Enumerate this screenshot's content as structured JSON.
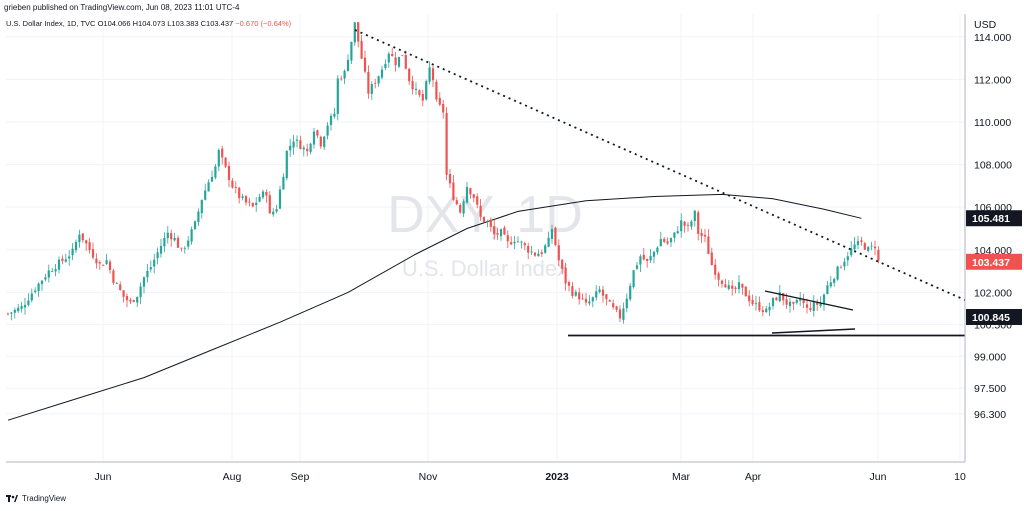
{
  "header": {
    "publisher": "grieben published on TradingView.com, Jun 08, 2023 11:01 UTC-4"
  },
  "symbol": {
    "name": "U.S. Dollar Index, 1D, TVC",
    "open": "O104.066",
    "high": "H104.073",
    "low": "L103.383",
    "close": "C103.437",
    "change": "−0.670 (−0.64%)"
  },
  "watermark": {
    "ticker": "DXY, 1D",
    "name": "U.S. Dollar Index"
  },
  "footer": {
    "brand": "TradingView"
  },
  "colors": {
    "up": "#26a69a",
    "down": "#ef5350",
    "line": "#131722",
    "grid": "#f0f3fa",
    "badge_dark": "#131722",
    "badge_red": "#ef5350"
  },
  "chart_data": {
    "type": "candlestick",
    "title": "U.S. Dollar Index, 1D, TVC",
    "currency": "USD",
    "grid": true,
    "y_ticks": [
      96.3,
      97.5,
      99.0,
      100.5,
      102.0,
      104.0,
      106.0,
      108.0,
      110.0,
      112.0,
      114.0
    ],
    "y_tick_labels": [
      "96.300",
      "97.500",
      "99.000",
      "100.500",
      "102.000",
      "104.000",
      "106.000",
      "108.000",
      "110.000",
      "112.000",
      "114.000"
    ],
    "x_labels": [
      "Jun",
      "Aug",
      "Sep",
      "Nov",
      "2023",
      "Mar",
      "Apr",
      "Jun",
      "10"
    ],
    "price_badges": [
      {
        "label": "105.481",
        "value": 105.481,
        "style": "dark"
      },
      {
        "label": "103.437",
        "value": 103.437,
        "style": "red"
      },
      {
        "label": "100.845",
        "value": 100.845,
        "style": "dark"
      }
    ],
    "price_path": [
      [
        0,
        101.0
      ],
      [
        4,
        101.3
      ],
      [
        8,
        102.2
      ],
      [
        12,
        103.0
      ],
      [
        16,
        103.5
      ],
      [
        19,
        103.9
      ],
      [
        21,
        104.8
      ],
      [
        24,
        104.0
      ],
      [
        27,
        103.3
      ],
      [
        29,
        103.5
      ],
      [
        31,
        102.6
      ],
      [
        34,
        101.8
      ],
      [
        36,
        101.5
      ],
      [
        38,
        101.9
      ],
      [
        40,
        102.7
      ],
      [
        42,
        103.2
      ],
      [
        45,
        104.2
      ],
      [
        47,
        104.8
      ],
      [
        49,
        104.5
      ],
      [
        51,
        103.9
      ],
      [
        53,
        104.5
      ],
      [
        55,
        105.2
      ],
      [
        57,
        106.4
      ],
      [
        59,
        107.2
      ],
      [
        61,
        107.9
      ],
      [
        62,
        108.6
      ],
      [
        64,
        107.8
      ],
      [
        66,
        107.0
      ],
      [
        68,
        106.5
      ],
      [
        70,
        106.2
      ],
      [
        72,
        106.0
      ],
      [
        74,
        106.5
      ],
      [
        76,
        106.7
      ],
      [
        77,
        105.6
      ],
      [
        79,
        106.0
      ],
      [
        81,
        107.6
      ],
      [
        82,
        108.6
      ],
      [
        84,
        109.2
      ],
      [
        86,
        108.9
      ],
      [
        88,
        108.6
      ],
      [
        90,
        109.7
      ],
      [
        92,
        109.0
      ],
      [
        94,
        109.9
      ],
      [
        96,
        110.4
      ],
      [
        97,
        112.0
      ],
      [
        99,
        112.3
      ],
      [
        101,
        113.8
      ],
      [
        102,
        114.6
      ],
      [
        104,
        113.0
      ],
      [
        106,
        111.4
      ],
      [
        108,
        111.9
      ],
      [
        110,
        112.5
      ],
      [
        112,
        113.3
      ],
      [
        114,
        112.8
      ],
      [
        116,
        113.2
      ],
      [
        118,
        112.0
      ],
      [
        120,
        111.4
      ],
      [
        122,
        111.0
      ],
      [
        124,
        112.5
      ],
      [
        125,
        112.0
      ],
      [
        126,
        110.9
      ],
      [
        128,
        110.5
      ],
      [
        129,
        107.5
      ],
      [
        131,
        106.5
      ],
      [
        133,
        105.8
      ],
      [
        135,
        107.0
      ],
      [
        137,
        106.5
      ],
      [
        139,
        105.5
      ],
      [
        141,
        105.3
      ],
      [
        143,
        104.7
      ],
      [
        145,
        104.8
      ],
      [
        147,
        104.3
      ],
      [
        149,
        104.5
      ],
      [
        151,
        104.3
      ],
      [
        153,
        104.0
      ],
      [
        155,
        103.8
      ],
      [
        157,
        103.9
      ],
      [
        159,
        104.4
      ],
      [
        160,
        105.0
      ],
      [
        162,
        103.5
      ],
      [
        164,
        102.5
      ],
      [
        166,
        102.0
      ],
      [
        168,
        101.8
      ],
      [
        170,
        101.4
      ],
      [
        172,
        101.7
      ],
      [
        174,
        102.1
      ],
      [
        176,
        101.6
      ],
      [
        178,
        101.2
      ],
      [
        180,
        100.85
      ],
      [
        182,
        101.8
      ],
      [
        184,
        103.0
      ],
      [
        186,
        103.7
      ],
      [
        188,
        103.4
      ],
      [
        190,
        103.9
      ],
      [
        192,
        104.5
      ],
      [
        194,
        104.3
      ],
      [
        196,
        104.7
      ],
      [
        198,
        105.3
      ],
      [
        200,
        105.0
      ],
      [
        202,
        105.7
      ],
      [
        203,
        104.8
      ],
      [
        205,
        104.5
      ],
      [
        207,
        103.3
      ],
      [
        209,
        102.7
      ],
      [
        211,
        102.4
      ],
      [
        213,
        102.0
      ],
      [
        215,
        102.3
      ],
      [
        217,
        101.9
      ],
      [
        219,
        101.5
      ],
      [
        221,
        101.3
      ],
      [
        223,
        101.1
      ],
      [
        225,
        101.6
      ],
      [
        227,
        101.9
      ],
      [
        229,
        101.5
      ],
      [
        231,
        101.3
      ],
      [
        233,
        101.7
      ],
      [
        235,
        101.2
      ],
      [
        237,
        101.4
      ],
      [
        239,
        101.5
      ],
      [
        241,
        102.3
      ],
      [
        243,
        102.8
      ],
      [
        245,
        103.3
      ],
      [
        247,
        103.8
      ],
      [
        249,
        104.2
      ],
      [
        251,
        104.3
      ],
      [
        253,
        104.0
      ],
      [
        255,
        104.2
      ],
      [
        256,
        103.44
      ]
    ],
    "ma_path": [
      [
        0,
        96.0
      ],
      [
        20,
        97.0
      ],
      [
        40,
        98.0
      ],
      [
        60,
        99.3
      ],
      [
        80,
        100.6
      ],
      [
        100,
        102.0
      ],
      [
        120,
        103.8
      ],
      [
        135,
        105.0
      ],
      [
        150,
        105.8
      ],
      [
        170,
        106.3
      ],
      [
        190,
        106.5
      ],
      [
        210,
        106.6
      ],
      [
        225,
        106.4
      ],
      [
        240,
        105.9
      ],
      [
        251,
        105.48
      ]
    ],
    "bar_count": 257
  }
}
